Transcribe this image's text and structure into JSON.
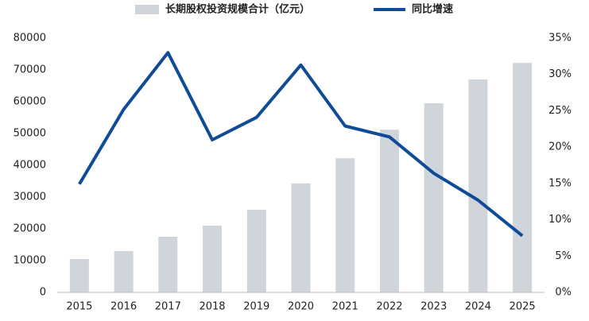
{
  "chart_data": {
    "type": "bar-line",
    "categories": [
      "2015",
      "2016",
      "2017",
      "2018",
      "2019",
      "2020",
      "2021",
      "2022",
      "2023",
      "2024",
      "2025"
    ],
    "series": [
      {
        "name": "长期股权投资规模合计（亿元）",
        "color": "#d0d5dc",
        "type": "bar",
        "values": [
          10500,
          13000,
          17500,
          21000,
          26000,
          34300,
          42200,
          51200,
          59500,
          67000,
          72200
        ]
      },
      {
        "name": "同比增速",
        "color": "#0f4b97",
        "type": "line",
        "axis": "y2",
        "values": [
          14.9,
          25.2,
          33.0,
          21.0,
          24.1,
          31.3,
          22.9,
          21.4,
          16.4,
          12.7,
          7.8
        ]
      }
    ],
    "ylim": [
      0,
      80000
    ],
    "yticks": [
      0,
      10000,
      20000,
      30000,
      40000,
      50000,
      60000,
      70000,
      80000
    ],
    "y2lim": [
      0,
      35
    ],
    "y2ticks": [
      {
        "value": 0,
        "label": "0%"
      },
      {
        "value": 5,
        "label": "5%"
      },
      {
        "value": 10,
        "label": "10%"
      },
      {
        "value": 15,
        "label": "15%"
      },
      {
        "value": 20,
        "label": "20%"
      },
      {
        "value": 25,
        "label": "25%"
      },
      {
        "value": 30,
        "label": "30%"
      },
      {
        "value": 35,
        "label": "35%"
      }
    ],
    "grid": false,
    "legend": "top"
  }
}
